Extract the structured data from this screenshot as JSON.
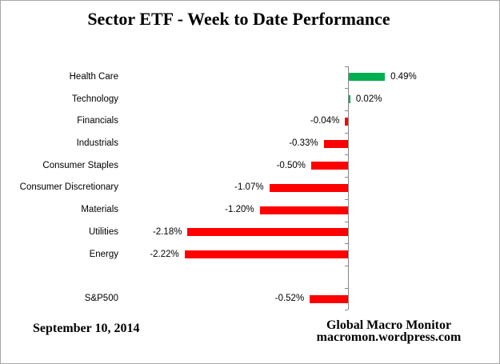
{
  "chart_data": {
    "type": "bar",
    "orientation": "horizontal",
    "title": "Sector ETF - Week to Date Performance",
    "categories": [
      "Health Care",
      "Technology",
      "Financials",
      "Industrials",
      "Consumer Staples",
      "Consumer Discretionary",
      "Materials",
      "Utilities",
      "Energy",
      "",
      "S&P500"
    ],
    "values": [
      0.49,
      0.02,
      -0.04,
      -0.33,
      -0.5,
      -1.07,
      -1.2,
      -2.18,
      -2.22,
      null,
      -0.52
    ],
    "value_labels": [
      "0.49%",
      "0.02%",
      "-0.04%",
      "-0.33%",
      "-0.50%",
      "-1.07%",
      "-1.20%",
      "-2.18%",
      "-2.22%",
      "",
      "-0.52%"
    ],
    "xlabel": "",
    "ylabel": "",
    "axis_tick_labels_visible": false,
    "grid": false,
    "legend": false,
    "positive_color": "#00B050",
    "negative_color": "#FF0000",
    "axis_color": "#868686",
    "xlim_percent": [
      -2.5,
      2.0
    ]
  },
  "footer": {
    "date": "September 10, 2014",
    "source_line1": "Global Macro Monitor",
    "source_line2": "macromon.wordpress.com"
  }
}
